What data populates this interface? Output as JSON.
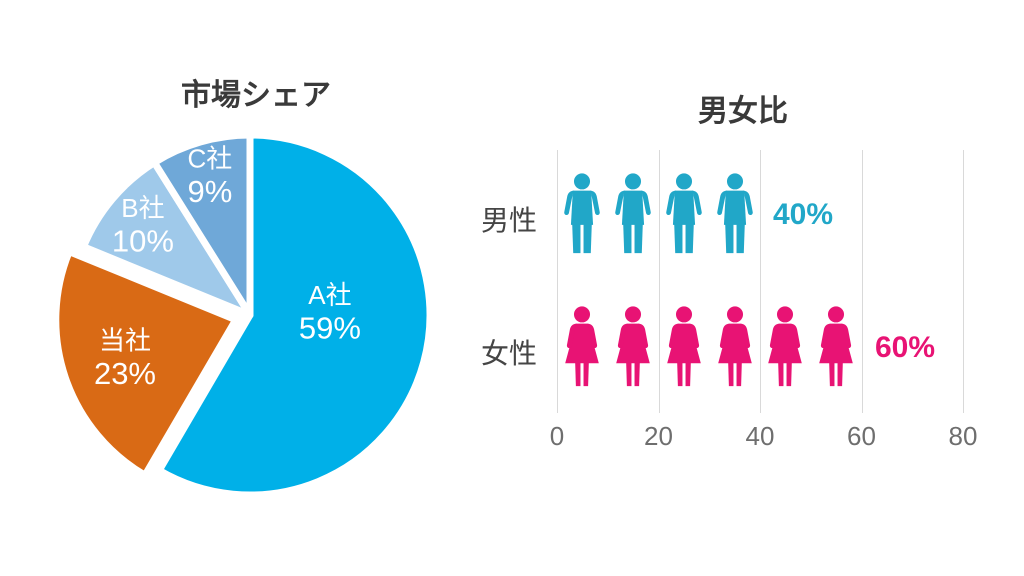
{
  "page": {
    "background": "#ffffff"
  },
  "chart_data": [
    {
      "type": "pie",
      "title": "市場シェア",
      "slices": [
        {
          "label": "A社",
          "value": 59,
          "display": "59%",
          "color": "#00B0E8",
          "exploded": false
        },
        {
          "label": "当社",
          "value": 23,
          "display": "23%",
          "color": "#D96A15",
          "exploded": true
        },
        {
          "label": "B社",
          "value": 10,
          "display": "10%",
          "color": "#9FC9EA",
          "exploded": false
        },
        {
          "label": "C社",
          "value": 9,
          "display": "9%",
          "color": "#6FA8D8",
          "exploded": false
        }
      ],
      "start_angle_deg": 0,
      "direction": "clockwise",
      "slice_label_color": "#ffffff",
      "gap_color": "#ffffff"
    },
    {
      "type": "pictogram_bar",
      "title": "男女比",
      "categories": [
        "男性",
        "女性"
      ],
      "values": [
        40,
        60
      ],
      "value_labels": [
        "40%",
        "60%"
      ],
      "icon_counts": [
        4,
        6
      ],
      "icon_unit": 10,
      "icon_colors": {
        "male": "#21A7C8",
        "female": "#E81374"
      },
      "xlim": [
        0,
        80
      ],
      "x_ticks": [
        0,
        20,
        40,
        60,
        80
      ],
      "grid": true,
      "legend": false
    }
  ]
}
